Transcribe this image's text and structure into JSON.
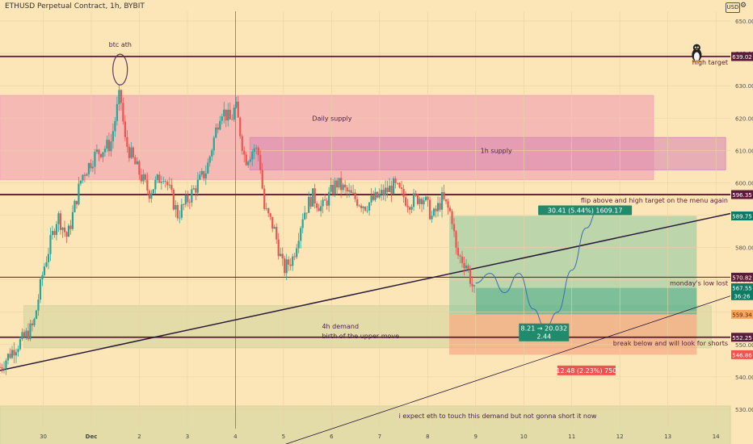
{
  "header": {
    "currency": "USD"
  },
  "colors": {
    "background": "#fce6b8",
    "bull": "#26a69a",
    "bear": "#ef5350",
    "level": "#5c1a3a",
    "trend": "#2a1a3a",
    "daily_supply": "#f3a3b3",
    "h1_supply": "#d98ab3",
    "demand": "#cfd39a",
    "target_box": "#86c79e",
    "stop_box": "#f6a883",
    "target_label": "#1f8a6c",
    "stop_label": "#ef5350",
    "tag_dark": "#5c1a3a",
    "tag_price": "#0f7a63",
    "tag_orange": "#f7a65c"
  },
  "chart_data": {
    "type": "candlestick",
    "title": "ETHUSD Perpetual Contract, 1h, BYBIT",
    "y_range": [
      524,
      653
    ],
    "x_range": [
      29.1,
      14.3
    ],
    "x_ticks": [
      {
        "x": 30,
        "label": "30"
      },
      {
        "x": 31,
        "label": "Dec"
      },
      {
        "x": 32,
        "label": "2"
      },
      {
        "x": 33,
        "label": "3"
      },
      {
        "x": 34,
        "label": "4"
      },
      {
        "x": 35,
        "label": "5"
      },
      {
        "x": 36,
        "label": "6"
      },
      {
        "x": 37,
        "label": "7"
      },
      {
        "x": 38,
        "label": "8"
      },
      {
        "x": 39,
        "label": "9"
      },
      {
        "x": 40,
        "label": "10"
      },
      {
        "x": 41,
        "label": "11"
      },
      {
        "x": 42,
        "label": "12"
      },
      {
        "x": 43,
        "label": "13"
      },
      {
        "x": 44,
        "label": "14"
      }
    ],
    "y_ticks": [
      530,
      540,
      550,
      560,
      570,
      580,
      590,
      600,
      610,
      620,
      630,
      640,
      650
    ],
    "candle_path": [
      [
        29.1,
        543
      ],
      [
        29.4,
        549
      ],
      [
        29.6,
        552
      ],
      [
        29.8,
        556
      ],
      [
        30.0,
        573
      ],
      [
        30.3,
        590
      ],
      [
        30.5,
        583
      ],
      [
        30.8,
        602
      ],
      [
        31.1,
        609
      ],
      [
        31.4,
        612
      ],
      [
        31.6,
        628
      ],
      [
        31.7,
        613
      ],
      [
        31.9,
        606
      ],
      [
        32.2,
        597
      ],
      [
        32.5,
        603
      ],
      [
        32.8,
        590
      ],
      [
        33.1,
        597
      ],
      [
        33.4,
        604
      ],
      [
        33.7,
        623
      ],
      [
        33.9,
        619
      ],
      [
        34.0,
        624
      ],
      [
        34.2,
        607
      ],
      [
        34.4,
        611
      ],
      [
        34.5,
        608
      ],
      [
        34.6,
        592
      ],
      [
        34.8,
        586
      ],
      [
        35.0,
        573
      ],
      [
        35.2,
        577
      ],
      [
        35.4,
        590
      ],
      [
        35.6,
        596
      ],
      [
        35.8,
        592
      ],
      [
        36.1,
        600
      ],
      [
        36.4,
        596
      ],
      [
        36.7,
        593
      ],
      [
        37.0,
        596
      ],
      [
        37.3,
        599
      ],
      [
        37.6,
        594
      ],
      [
        37.9,
        596
      ],
      [
        38.1,
        589
      ],
      [
        38.3,
        595
      ],
      [
        38.5,
        590
      ],
      [
        38.6,
        578
      ],
      [
        38.8,
        575
      ],
      [
        38.95,
        567
      ],
      [
        39.0,
        565
      ]
    ],
    "zones": [
      {
        "name": "Daily supply",
        "label": "Daily supply",
        "x1": 29.1,
        "x2": 42.7,
        "y1": 601,
        "y2": 627
      },
      {
        "name": "1h supply",
        "label": "1h supply",
        "x1": 34.3,
        "x2": 44.2,
        "y1": 604,
        "y2": 614
      },
      {
        "name": "4h demand",
        "label": "4h demand\nbirth of the upper move",
        "x1": 29.6,
        "x2": 43.9,
        "y1": 549,
        "y2": 562
      },
      {
        "name": "lower demand",
        "label": "i expect eth to touch this demand but not gonna short it now",
        "x1": 29.1,
        "x2": 44.3,
        "y1": 519,
        "y2": 531
      }
    ],
    "levels": [
      {
        "name": "high target",
        "price": 639.02,
        "label": "high target",
        "tag": "639.02",
        "x1": 29.1
      },
      {
        "name": "flip level",
        "price": 596.35,
        "label": "flip above and high target on the menu again",
        "tag": "596.35",
        "x1": 29.1
      },
      {
        "name": "monday low",
        "price": 570.82,
        "label": "monday's low lost",
        "tag": "570.82",
        "x1": 29.1
      },
      {
        "name": "shorts level",
        "price": 552.25,
        "label": "break below and will look for shorts",
        "tag": "552.25",
        "x1": 29.1
      }
    ],
    "trendlines": [
      {
        "name": "rising trendline",
        "x1": 29.1,
        "y1": 542,
        "x2": 44.3,
        "y2": 590.5
      },
      {
        "name": "lower trendline",
        "x1": 34.8,
        "y1": 518,
        "x2": 44.3,
        "y2": 565
      }
    ],
    "position": {
      "entry_x1": 38.45,
      "entry_x2": 43.6,
      "entry": 559.34,
      "target": 589.75,
      "stop": 546.86,
      "target_label": "30.41 (5.44%) 1609.17",
      "ratio_label": "8.21 → 20.032\n2.44",
      "stop_label": "12.48 (2.23%) 750"
    },
    "price_tags": [
      {
        "price": 639.02,
        "text": "639.02",
        "style": "dark"
      },
      {
        "price": 596.35,
        "text": "596.35",
        "style": "dark"
      },
      {
        "price": 589.75,
        "text": "589.75",
        "style": "target"
      },
      {
        "price": 570.82,
        "text": "570.82",
        "style": "dark"
      },
      {
        "price": 567.55,
        "text": "567.55",
        "style": "price"
      },
      {
        "price": 565.1,
        "text": "36:26",
        "style": "price"
      },
      {
        "price": 559.34,
        "text": "559.34",
        "style": "orange"
      },
      {
        "price": 552.25,
        "text": "552.25",
        "style": "dark"
      },
      {
        "price": 546.86,
        "text": "546.86",
        "style": "stop"
      }
    ],
    "annotations": [
      {
        "text": "btc ath",
        "x": 31.6,
        "y": 642
      },
      {
        "text": "4h demand",
        "x": 35.8,
        "y": 555
      },
      {
        "text": "birth of the upper move",
        "x": 35.8,
        "y": 552
      }
    ],
    "projection": [
      [
        39.0,
        569
      ],
      [
        39.3,
        572
      ],
      [
        39.6,
        566
      ],
      [
        39.9,
        572
      ],
      [
        40.2,
        561
      ],
      [
        40.45,
        555
      ],
      [
        40.7,
        560
      ],
      [
        41.0,
        573
      ],
      [
        41.3,
        586
      ],
      [
        41.55,
        592
      ]
    ],
    "vertical_line_x": 34.0,
    "icon": {
      "name": "linux-penguin-icon",
      "x": 43.6,
      "y": 641
    }
  }
}
